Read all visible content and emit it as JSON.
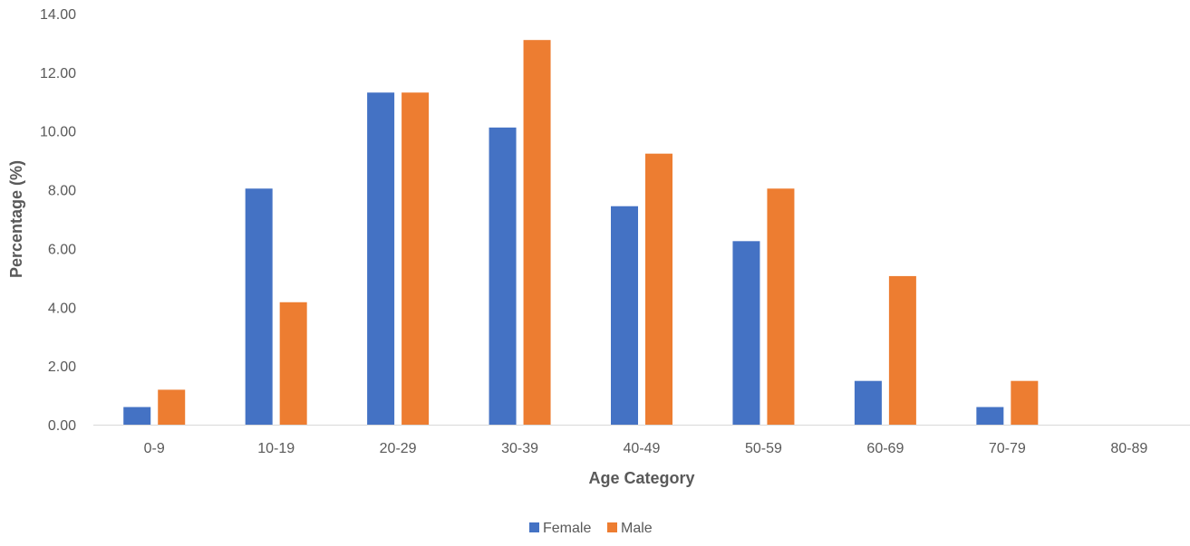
{
  "chart_data": {
    "type": "bar",
    "categories": [
      "0-9",
      "10-19",
      "20-29",
      "30-39",
      "40-49",
      "50-59",
      "60-69",
      "70-79",
      "80-89"
    ],
    "series": [
      {
        "name": "Female",
        "color": "#4472C4",
        "values": [
          0.6,
          8.04,
          11.31,
          10.12,
          7.44,
          6.25,
          1.49,
          0.6,
          0.0
        ]
      },
      {
        "name": "Male",
        "color": "#ED7D31",
        "values": [
          1.19,
          4.17,
          11.31,
          13.1,
          9.23,
          8.04,
          5.06,
          1.49,
          0.0
        ]
      }
    ],
    "title": "",
    "xlabel": "Age Category",
    "ylabel": "Percentage (%)",
    "ylim": [
      0,
      14
    ],
    "yticks": [
      "0.00",
      "2.00",
      "4.00",
      "6.00",
      "8.00",
      "10.00",
      "12.00",
      "14.00"
    ],
    "grid": false,
    "legend_position": "bottom"
  }
}
